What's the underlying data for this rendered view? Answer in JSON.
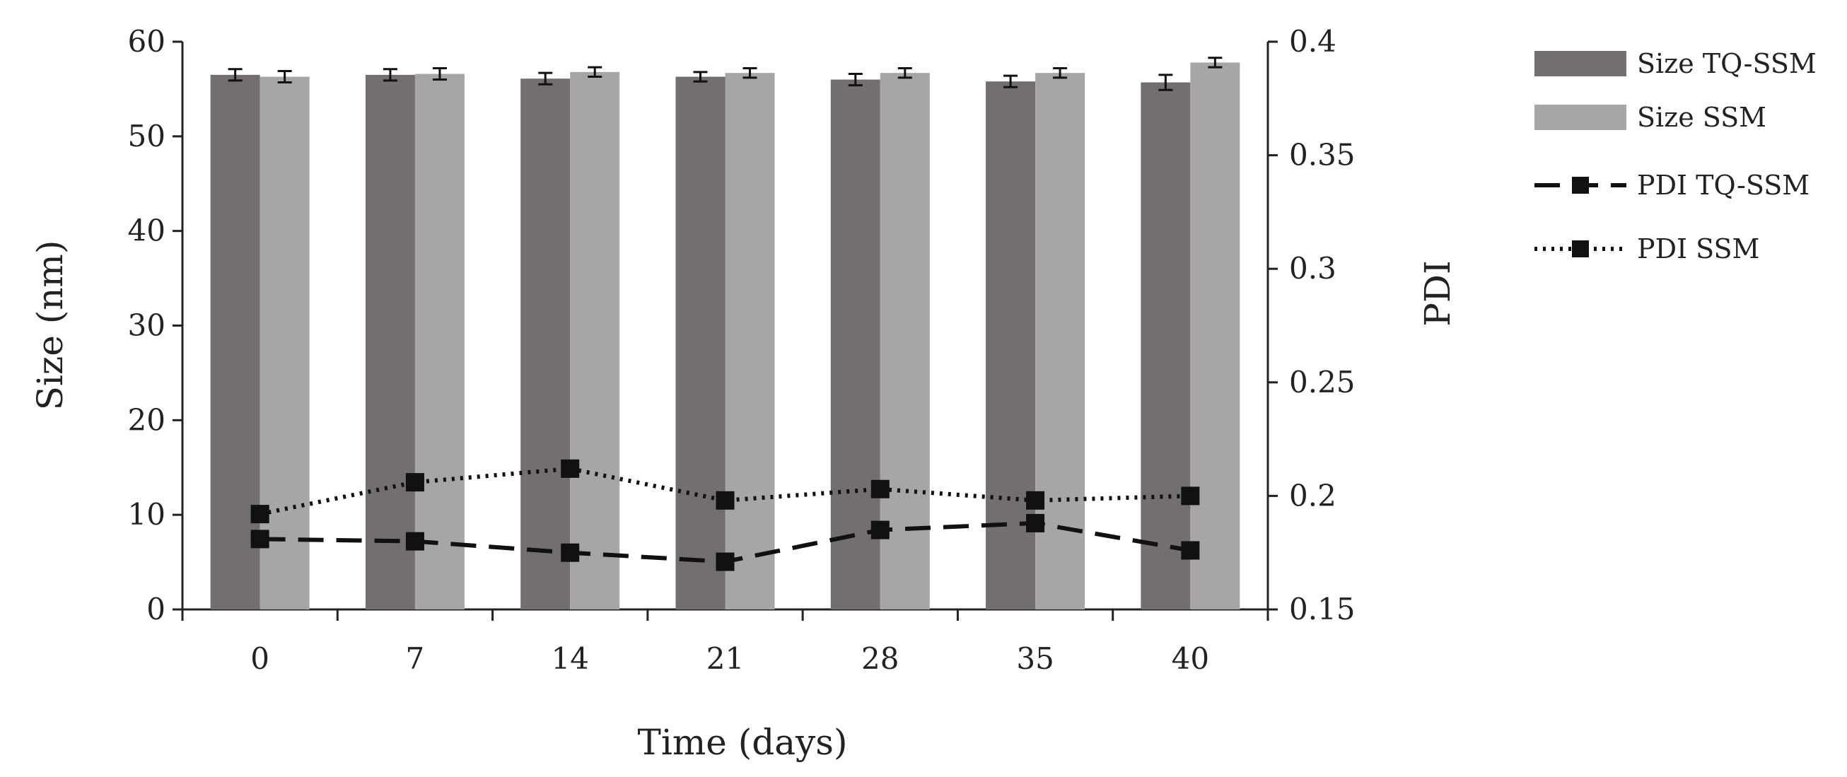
{
  "chart_data": {
    "type": "bar+line",
    "categories": [
      "0",
      "7",
      "14",
      "21",
      "28",
      "35",
      "40"
    ],
    "xlabel": "Time (days)",
    "ylabel": "Size (nm)",
    "y2label": "PDI",
    "ylim": [
      0,
      60
    ],
    "yticks": [
      "0",
      "10",
      "20",
      "30",
      "40",
      "50",
      "60"
    ],
    "y2lim": [
      0.15,
      0.4
    ],
    "y2ticks": [
      "0.15",
      "0.2",
      "0.25",
      "0.3",
      "0.35",
      "0.4"
    ],
    "grid": false,
    "legend_position": "right",
    "bar_series": [
      {
        "name": "Size TQ-SSM",
        "color": "#736e6f",
        "values": [
          56.5,
          56.5,
          56.1,
          56.3,
          56.0,
          55.8,
          55.7
        ],
        "errors": [
          0.6,
          0.6,
          0.6,
          0.5,
          0.6,
          0.6,
          0.8
        ]
      },
      {
        "name": "Size SSM",
        "color": "#a8a5a6",
        "values": [
          56.3,
          56.6,
          56.8,
          56.7,
          56.7,
          56.7,
          57.8
        ],
        "errors": [
          0.6,
          0.6,
          0.5,
          0.5,
          0.5,
          0.5,
          0.5
        ]
      }
    ],
    "line_series": [
      {
        "name": "PDI TQ-SSM",
        "style": "dashed",
        "color": "#111111",
        "values": [
          0.181,
          0.18,
          0.175,
          0.171,
          0.185,
          0.188,
          0.176
        ]
      },
      {
        "name": "PDI SSM",
        "style": "dotted",
        "color": "#111111",
        "values": [
          0.192,
          0.206,
          0.212,
          0.198,
          0.203,
          0.198,
          0.2
        ]
      }
    ]
  }
}
